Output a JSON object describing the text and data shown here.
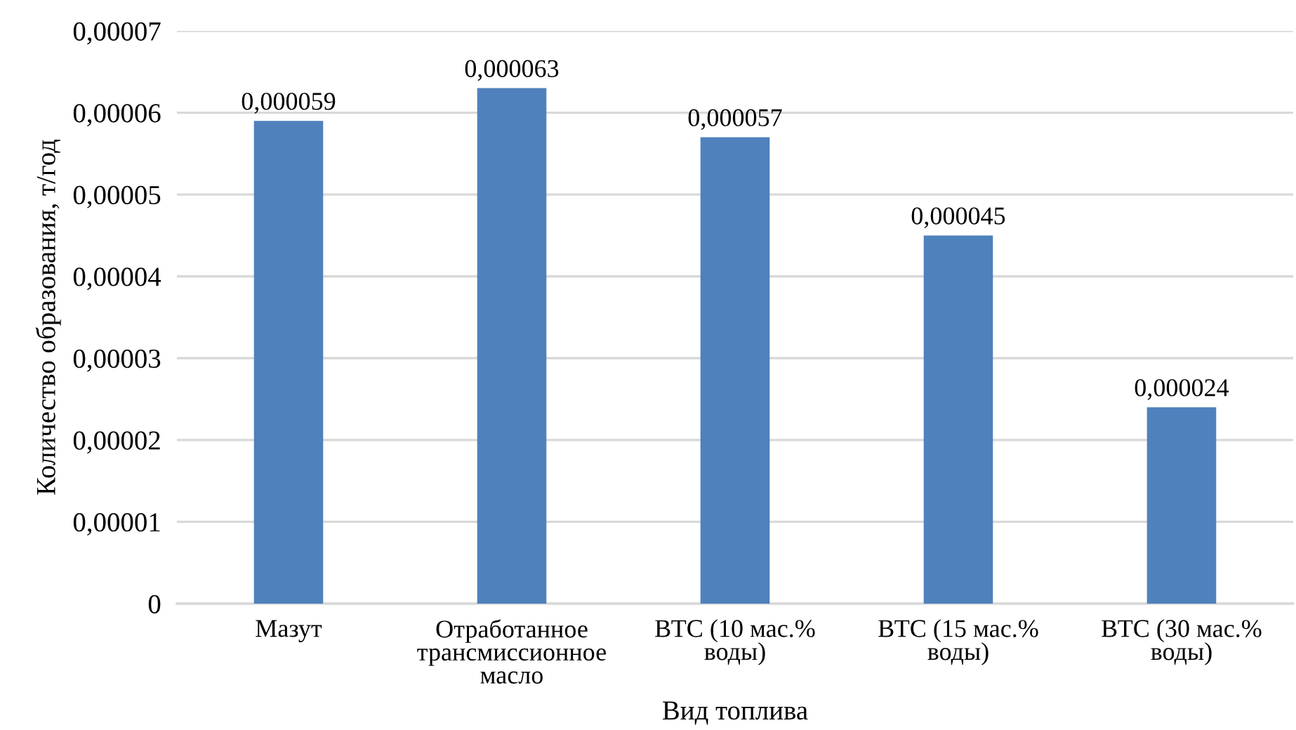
{
  "chart_data": {
    "type": "bar",
    "categories": [
      "Мазут",
      "Отработанное\nтрансмиссионное\nмасло",
      "ВТС (10 мас.%\nводы)",
      "ВТС (15 мас.%\nводы)",
      "ВТС (30 мас.%\nводы)"
    ],
    "values": [
      5.9e-05,
      6.3e-05,
      5.7e-05,
      4.5e-05,
      2.4e-05
    ],
    "value_labels": [
      "0,000059",
      "0,000063",
      "0,000057",
      "0,000045",
      "0,000024"
    ],
    "color": "#4f81bd",
    "xlabel": "Вид топлива",
    "ylabel": "Количество образования, т/год",
    "ylim": [
      0,
      7e-05
    ],
    "yticks": [
      {
        "value": 0,
        "label": "0"
      },
      {
        "value": 1e-05,
        "label": "0,00001"
      },
      {
        "value": 2e-05,
        "label": "0,00002"
      },
      {
        "value": 3e-05,
        "label": "0,00003"
      },
      {
        "value": 4e-05,
        "label": "0,00004"
      },
      {
        "value": 5e-05,
        "label": "0,00005"
      },
      {
        "value": 6e-05,
        "label": "0,00006"
      },
      {
        "value": 7e-05,
        "label": "0,00007"
      }
    ],
    "grid": "y"
  }
}
